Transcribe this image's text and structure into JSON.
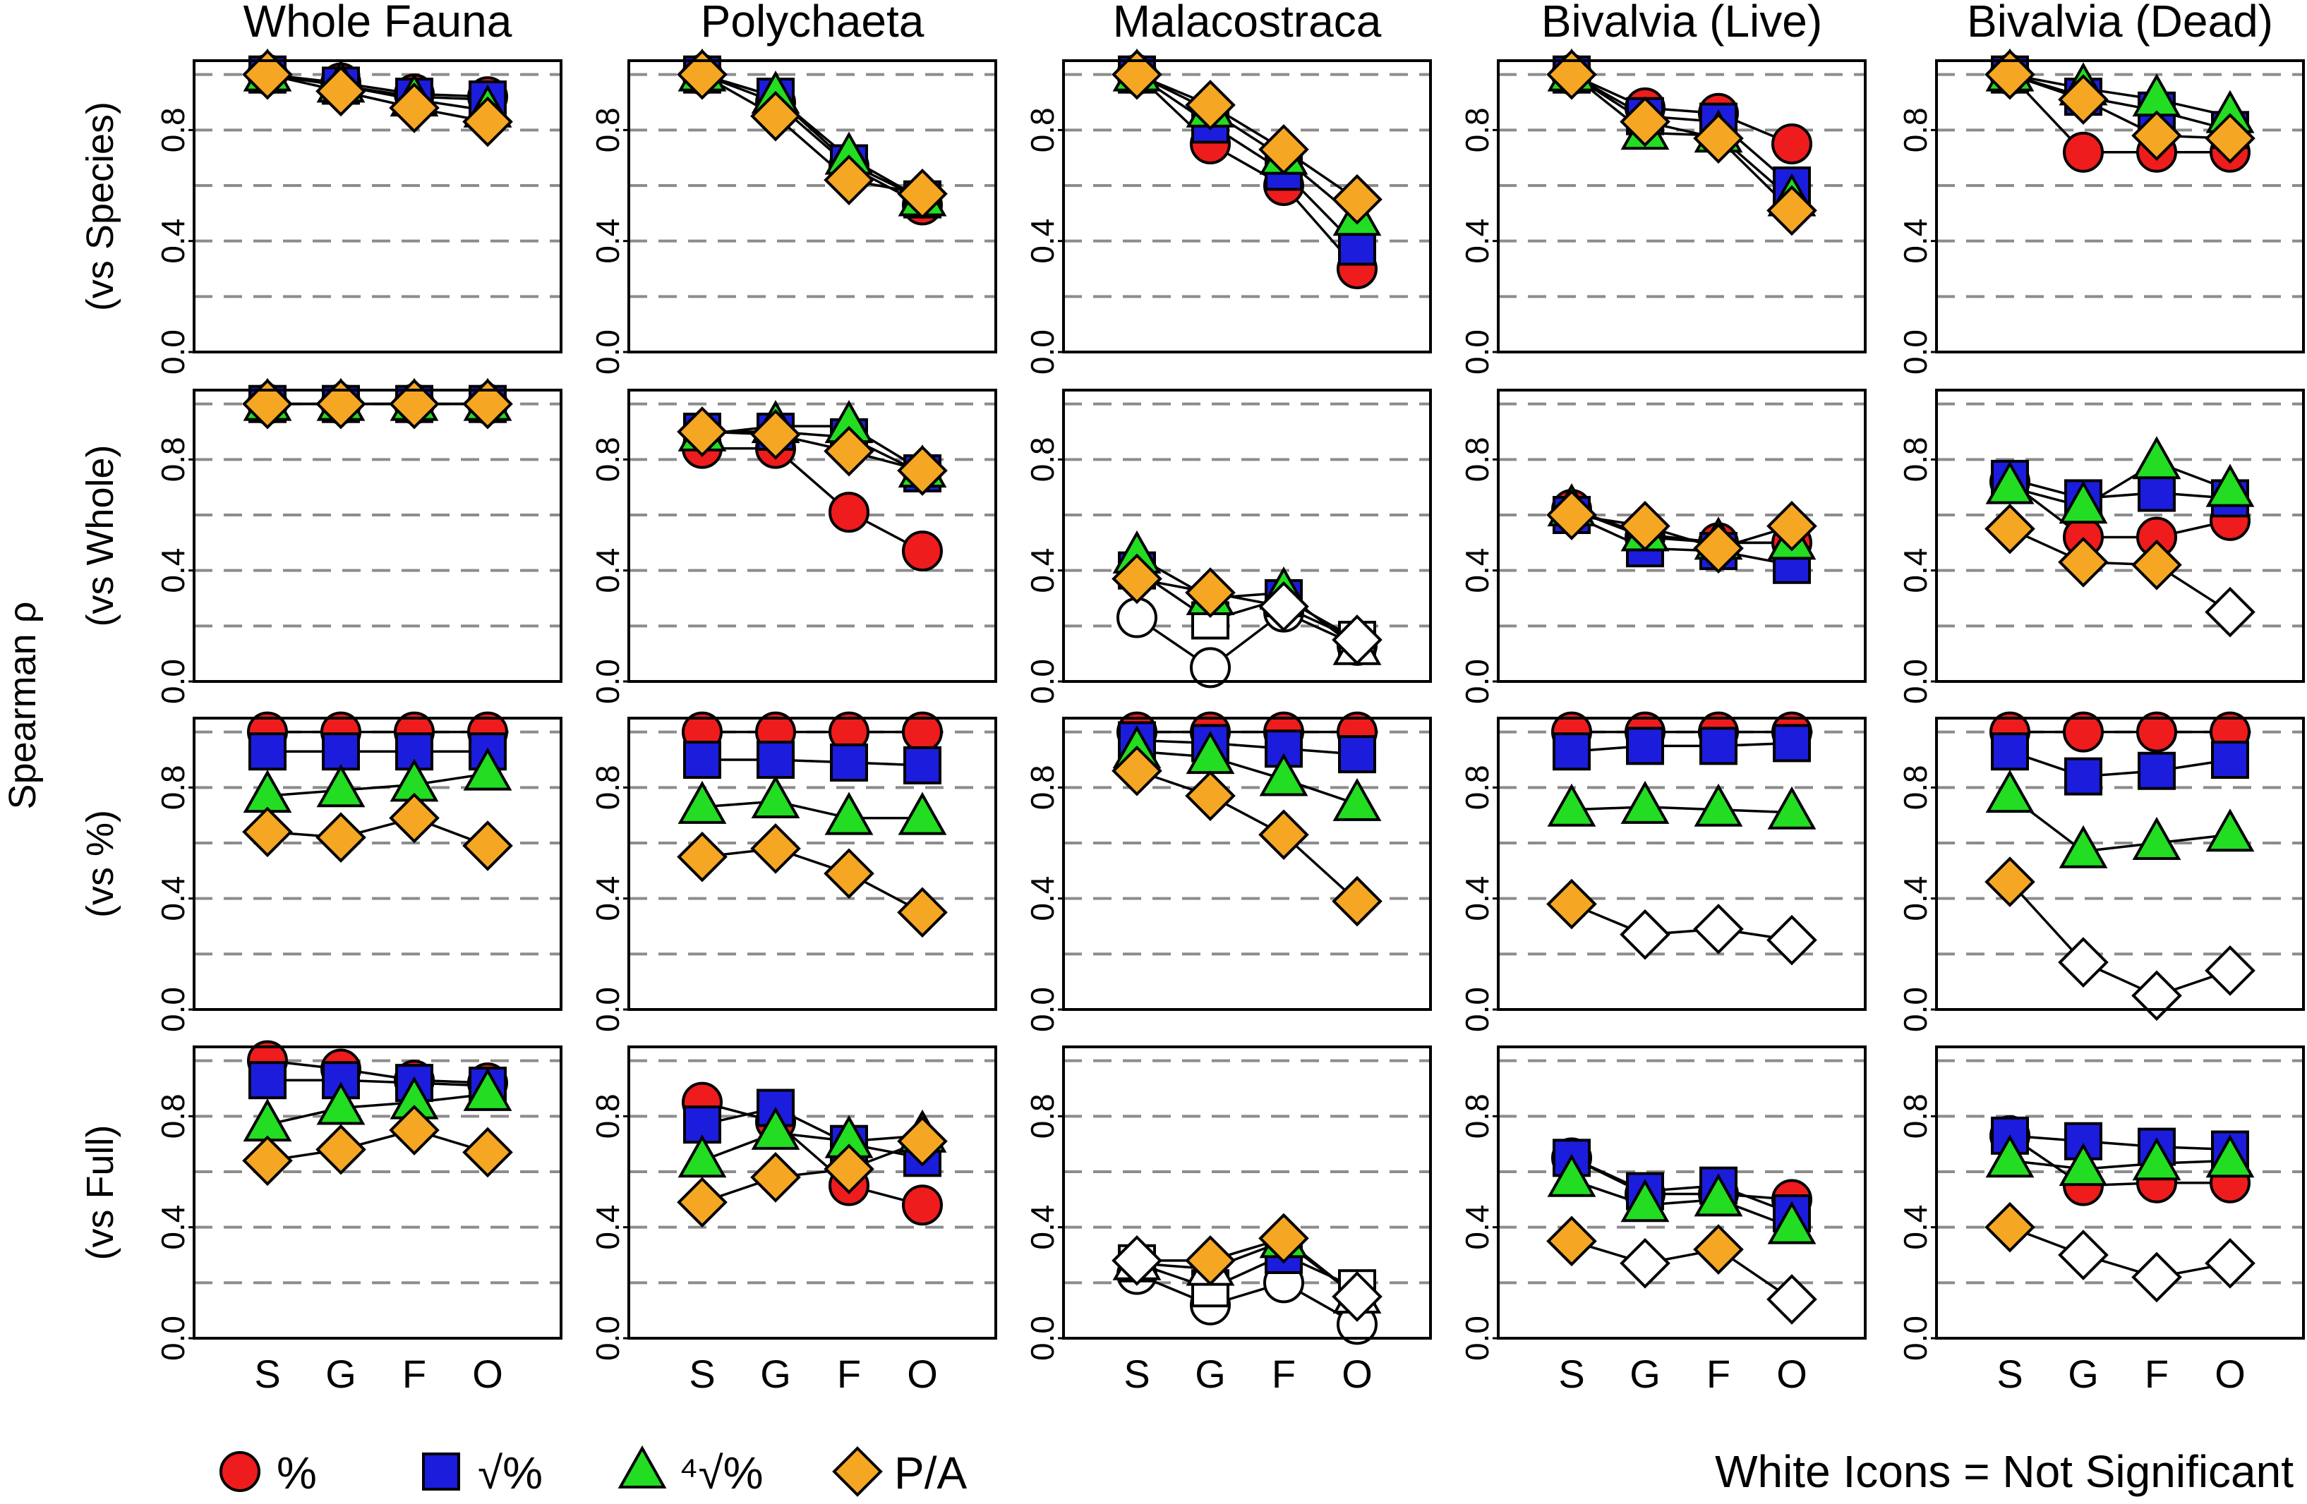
{
  "chart_data": {
    "type": "scatter",
    "ylabel": "Spearman ρ",
    "ylim": [
      0.0,
      1.05
    ],
    "yticks": [
      "0.0",
      "0.4",
      "0.8"
    ],
    "y_gridlines": [
      0.2,
      0.4,
      0.6,
      0.8,
      1.0
    ],
    "grid": "dashed horizontal",
    "categories": [
      "S",
      "G",
      "F",
      "O"
    ],
    "columns": [
      "Whole Fauna",
      "Polychaeta",
      "Malacostraca",
      "Bivalvia (Live)",
      "Bivalvia (Dead)"
    ],
    "rows": [
      "(vs Species)",
      "(vs Whole)",
      "(vs %)",
      "(vs Full)"
    ],
    "series_meta": [
      {
        "key": "pct",
        "label": "%",
        "marker": "circle",
        "color": "#ee1c1c"
      },
      {
        "key": "sqrt",
        "label": "√%",
        "marker": "square",
        "color": "#1c1cdd"
      },
      {
        "key": "root4",
        "label": "⁴√%",
        "marker": "triangle",
        "color": "#22dd22"
      },
      {
        "key": "pa",
        "label": "P/A",
        "marker": "diamond",
        "color": "#f5a623"
      }
    ],
    "legend": {
      "position": "bottom",
      "note": "White Icons = Not Significant"
    },
    "panels": [
      [
        {
          "pct": [
            1,
            0.97,
            0.93,
            0.92
          ],
          "sqrt": [
            1,
            0.96,
            0.92,
            0.91
          ],
          "root4": [
            1,
            0.96,
            0.91,
            0.87
          ],
          "pa": [
            1,
            0.94,
            0.88,
            0.83
          ]
        },
        {
          "pct": [
            1,
            0.9,
            0.67,
            0.53
          ],
          "sqrt": [
            1,
            0.92,
            0.68,
            0.55
          ],
          "root4": [
            1,
            0.92,
            0.7,
            0.55
          ],
          "pa": [
            1,
            0.85,
            0.62,
            0.57
          ]
        },
        {
          "pct": [
            1,
            0.75,
            0.6,
            0.3
          ],
          "sqrt": [
            1,
            0.82,
            0.65,
            0.38
          ],
          "root4": [
            1,
            0.87,
            0.7,
            0.48
          ],
          "pa": [
            1,
            0.89,
            0.73,
            0.55
          ]
        },
        {
          "pct": [
            1,
            0.88,
            0.86,
            0.75
          ],
          "sqrt": [
            1,
            0.85,
            0.83,
            0.6
          ],
          "root4": [
            1,
            0.79,
            0.78,
            0.55
          ],
          "pa": [
            1,
            0.83,
            0.77,
            0.51
          ]
        },
        {
          "pct": [
            1,
            0.72,
            0.72,
            0.72
          ],
          "sqrt": [
            1,
            0.92,
            0.87,
            0.8
          ],
          "root4": [
            1,
            0.95,
            0.91,
            0.85
          ],
          "pa": [
            1,
            0.91,
            0.78,
            0.77
          ]
        }
      ],
      [
        {
          "pct": [
            1,
            1,
            1,
            1
          ],
          "sqrt": [
            1,
            1,
            1,
            1
          ],
          "root4": [
            1,
            1,
            1,
            1
          ],
          "pa": [
            1,
            1,
            1,
            1
          ]
        },
        {
          "pct": [
            0.84,
            0.84,
            0.61,
            0.47
          ],
          "sqrt": [
            0.9,
            0.9,
            0.88,
            0.75
          ],
          "root4": [
            0.89,
            0.92,
            0.92,
            0.76
          ],
          "pa": [
            0.9,
            0.89,
            0.83,
            0.76
          ]
        },
        {
          "pct": [
            0.23,
            0.05,
            0.25,
            0.13
          ],
          "sqrt": [
            0.4,
            0.22,
            0.3,
            0.15
          ],
          "root4": [
            0.45,
            0.3,
            0.32,
            0.12
          ],
          "pa": [
            0.37,
            0.32,
            0.27,
            0.15
          ],
          "ns": {
            "pct": [
              0,
              1,
              2,
              3
            ],
            "sqrt": [
              1,
              3
            ],
            "root4": [
              3
            ],
            "pa": [
              2,
              3
            ]
          }
        },
        {
          "pct": [
            0.62,
            0.52,
            0.5,
            0.5
          ],
          "sqrt": [
            0.6,
            0.48,
            0.47,
            0.42
          ],
          "root4": [
            0.62,
            0.53,
            0.5,
            0.5
          ],
          "pa": [
            0.6,
            0.56,
            0.48,
            0.56
          ]
        },
        {
          "pct": [
            0.72,
            0.52,
            0.52,
            0.58
          ],
          "sqrt": [
            0.73,
            0.66,
            0.68,
            0.66
          ],
          "root4": [
            0.7,
            0.63,
            0.79,
            0.69
          ],
          "pa": [
            0.55,
            0.43,
            0.42,
            0.25
          ],
          "ns": {
            "pa": [
              3
            ]
          }
        }
      ],
      [
        {
          "pct": [
            1,
            1,
            1,
            1
          ],
          "sqrt": [
            0.93,
            0.93,
            0.93,
            0.93
          ],
          "root4": [
            0.77,
            0.79,
            0.81,
            0.85
          ],
          "pa": [
            0.64,
            0.62,
            0.69,
            0.59
          ]
        },
        {
          "pct": [
            1,
            1,
            1,
            1
          ],
          "sqrt": [
            0.9,
            0.9,
            0.89,
            0.88
          ],
          "root4": [
            0.73,
            0.75,
            0.69,
            0.69
          ],
          "pa": [
            0.55,
            0.58,
            0.49,
            0.35
          ]
        },
        {
          "pct": [
            1,
            1,
            1,
            1
          ],
          "sqrt": [
            0.97,
            0.96,
            0.94,
            0.92
          ],
          "root4": [
            0.93,
            0.91,
            0.83,
            0.74
          ],
          "pa": [
            0.86,
            0.77,
            0.63,
            0.39
          ]
        },
        {
          "pct": [
            1,
            1,
            1,
            1
          ],
          "sqrt": [
            0.93,
            0.95,
            0.95,
            0.96
          ],
          "root4": [
            0.72,
            0.73,
            0.72,
            0.71
          ],
          "pa": [
            0.38,
            0.27,
            0.29,
            0.25
          ],
          "ns": {
            "pa": [
              1,
              2,
              3
            ]
          }
        },
        {
          "pct": [
            1,
            1,
            1,
            1
          ],
          "sqrt": [
            0.93,
            0.84,
            0.86,
            0.9
          ],
          "root4": [
            0.77,
            0.57,
            0.6,
            0.63
          ],
          "pa": [
            0.46,
            0.17,
            0.05,
            0.14
          ],
          "ns": {
            "pa": [
              1,
              2,
              3
            ]
          }
        }
      ],
      [
        {
          "pct": [
            1,
            0.97,
            0.93,
            0.92
          ],
          "sqrt": [
            0.93,
            0.93,
            0.92,
            0.91
          ],
          "root4": [
            0.77,
            0.83,
            0.85,
            0.88
          ],
          "pa": [
            0.64,
            0.68,
            0.75,
            0.67
          ]
        },
        {
          "pct": [
            0.85,
            0.78,
            0.55,
            0.48
          ],
          "sqrt": [
            0.77,
            0.83,
            0.7,
            0.65
          ],
          "root4": [
            0.64,
            0.74,
            0.71,
            0.73
          ],
          "pa": [
            0.49,
            0.58,
            0.61,
            0.71
          ]
        },
        {
          "pct": [
            0.23,
            0.12,
            0.2,
            0.05
          ],
          "sqrt": [
            0.27,
            0.18,
            0.3,
            0.18
          ],
          "root4": [
            0.27,
            0.25,
            0.35,
            0.15
          ],
          "pa": [
            0.28,
            0.28,
            0.36,
            0.15
          ],
          "ns": {
            "pct": [
              0,
              1,
              2,
              3
            ],
            "sqrt": [
              0,
              1,
              3
            ],
            "root4": [
              0,
              1,
              3
            ],
            "pa": [
              0,
              3
            ]
          }
        },
        {
          "pct": [
            0.65,
            0.52,
            0.52,
            0.5
          ],
          "sqrt": [
            0.65,
            0.53,
            0.55,
            0.45
          ],
          "root4": [
            0.57,
            0.48,
            0.5,
            0.4
          ],
          "pa": [
            0.35,
            0.27,
            0.32,
            0.14
          ],
          "ns": {
            "pa": [
              1,
              3
            ]
          }
        },
        {
          "pct": [
            0.73,
            0.55,
            0.56,
            0.56
          ],
          "sqrt": [
            0.73,
            0.71,
            0.69,
            0.68
          ],
          "root4": [
            0.64,
            0.61,
            0.63,
            0.64
          ],
          "pa": [
            0.4,
            0.3,
            0.22,
            0.27
          ],
          "ns": {
            "pa": [
              1,
              2,
              3
            ]
          }
        }
      ]
    ]
  }
}
